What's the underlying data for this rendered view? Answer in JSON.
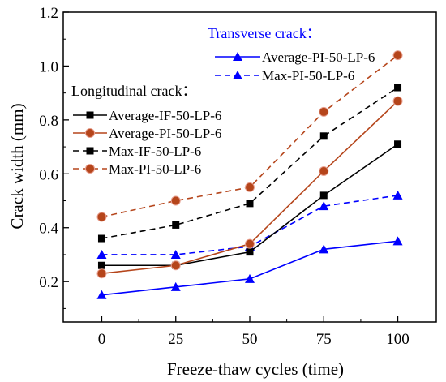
{
  "chart_data": {
    "type": "line",
    "xlabel": "Freeze-thaw cycles (time)",
    "ylabel": "Crack width (mm)",
    "x": [
      0,
      25,
      50,
      75,
      100
    ],
    "xticks": [
      "0",
      "25",
      "50",
      "75",
      "100"
    ],
    "xlim": [
      -13,
      113
    ],
    "ylim": [
      0.05,
      1.2
    ],
    "yticks": [
      "0.2",
      "0.4",
      "0.6",
      "0.8",
      "1.0",
      "1.2"
    ],
    "grid": false,
    "legend_groups": [
      {
        "title": "Transverse crack：",
        "title_color": "#0000ff",
        "placement": "top-right",
        "series_indices": [
          0,
          1
        ]
      },
      {
        "title": "Longitudinal crack：",
        "title_color": "#000000",
        "placement": "left",
        "series_indices": [
          2,
          3,
          4,
          5
        ]
      }
    ],
    "series": [
      {
        "name": "Average-PI-50-LP-6",
        "values": [
          0.15,
          0.18,
          0.21,
          0.32,
          0.35
        ],
        "color": "#0000ff",
        "dash": "solid",
        "marker": "triangle"
      },
      {
        "name": "Max-PI-50-LP-6",
        "values": [
          0.3,
          0.3,
          0.33,
          0.48,
          0.52
        ],
        "color": "#0000ff",
        "dash": "dashed",
        "marker": "triangle"
      },
      {
        "name": "Average-IF-50-LP-6",
        "values": [
          0.26,
          0.26,
          0.31,
          0.52,
          0.71
        ],
        "color": "#000000",
        "dash": "solid",
        "marker": "square"
      },
      {
        "name": "Average-PI-50-LP-6",
        "values": [
          0.23,
          0.26,
          0.34,
          0.61,
          0.87
        ],
        "color": "#b5451b",
        "dash": "solid",
        "marker": "circle"
      },
      {
        "name": "Max-IF-50-LP-6",
        "values": [
          0.36,
          0.41,
          0.49,
          0.74,
          0.92
        ],
        "color": "#000000",
        "dash": "dashed",
        "marker": "square"
      },
      {
        "name": "Max-PI-50-LP-6",
        "values": [
          0.44,
          0.5,
          0.55,
          0.83,
          1.04
        ],
        "color": "#b5451b",
        "dash": "dashed",
        "marker": "circle"
      }
    ]
  }
}
